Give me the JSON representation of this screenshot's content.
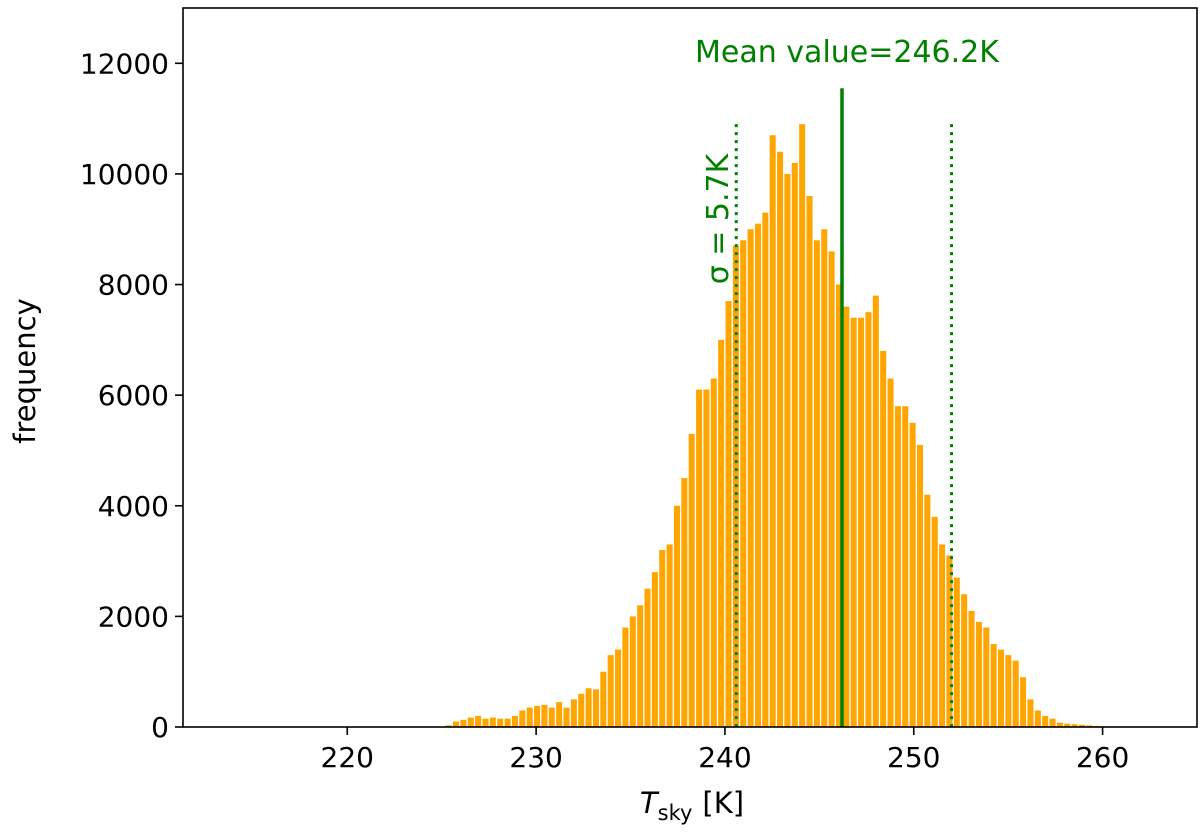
{
  "chart_data": {
    "type": "bar",
    "xlabel_main": "T",
    "xlabel_sub": "sky",
    "xlabel_unit": "[K]",
    "ylabel": "frequency",
    "xlim": [
      211.3,
      265.0
    ],
    "ylim": [
      0,
      13000
    ],
    "xticks": [
      220,
      230,
      240,
      250,
      260
    ],
    "yticks": [
      0,
      2000,
      4000,
      6000,
      8000,
      10000,
      12000
    ],
    "grid": false,
    "bar_color": "#ffa500",
    "annotation_color": "#008000",
    "bin_width": 0.3898,
    "x": [
      225.37,
      225.76,
      226.15,
      226.54,
      226.93,
      227.32,
      227.71,
      228.1,
      228.49,
      228.88,
      229.27,
      229.66,
      230.05,
      230.44,
      230.83,
      231.22,
      231.61,
      232.0,
      232.39,
      232.78,
      233.17,
      233.56,
      233.95,
      234.34,
      234.73,
      235.12,
      235.51,
      235.9,
      236.29,
      236.68,
      237.07,
      237.46,
      237.85,
      238.24,
      238.63,
      239.02,
      239.41,
      239.8,
      240.19,
      240.58,
      240.97,
      241.36,
      241.75,
      242.14,
      242.53,
      242.92,
      243.31,
      243.7,
      244.09,
      244.48,
      244.87,
      245.26,
      245.65,
      246.04,
      246.43,
      246.82,
      247.21,
      247.6,
      247.99,
      248.38,
      248.77,
      249.16,
      249.55,
      249.94,
      250.33,
      250.72,
      251.11,
      251.5,
      251.89,
      252.28,
      252.67,
      253.06,
      253.45,
      253.84,
      254.23,
      254.62,
      255.01,
      255.4,
      255.79,
      256.18,
      256.57,
      256.96,
      257.35,
      257.74,
      258.13,
      258.52,
      258.91,
      259.3,
      259.69,
      260.08,
      260.47,
      260.86,
      261.25,
      261.64,
      262.03,
      262.42,
      262.81
    ],
    "values": [
      30,
      100,
      130,
      170,
      200,
      150,
      170,
      150,
      150,
      200,
      300,
      350,
      380,
      400,
      350,
      450,
      350,
      500,
      600,
      700,
      680,
      1000,
      1300,
      1400,
      1800,
      2000,
      2200,
      2500,
      2800,
      3200,
      3300,
      4000,
      4500,
      5300,
      6100,
      6100,
      6300,
      7000,
      7700,
      8700,
      8800,
      9000,
      9100,
      9300,
      10700,
      10400,
      10000,
      10200,
      10900,
      9600,
      8800,
      9000,
      8600,
      8000,
      7600,
      7400,
      7400,
      7500,
      7800,
      6800,
      6300,
      5800,
      5800,
      5500,
      5100,
      4200,
      3800,
      3300,
      3100,
      2700,
      2400,
      2100,
      1900,
      1800,
      1500,
      1400,
      1300,
      1200,
      900,
      500,
      300,
      200,
      150,
      80,
      60,
      50,
      40,
      30,
      20,
      10,
      5,
      3,
      2,
      1,
      1,
      1,
      1
    ],
    "mean_line": {
      "value": 246.2,
      "top": 11550,
      "label": "Mean value=246.2K"
    },
    "sigma_lines": {
      "values": [
        240.6,
        252.0
      ],
      "top": 10900,
      "label": "σ = 5.7K"
    }
  }
}
